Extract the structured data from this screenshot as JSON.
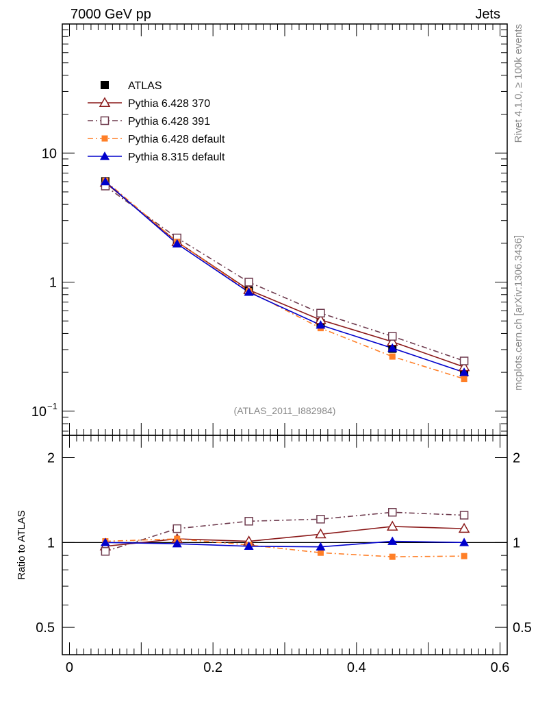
{
  "header": {
    "left_title": "7000 GeV pp",
    "right_title": "Jets"
  },
  "side_text": {
    "rivet": "Rivet 4.1.0, ≥ 100k events",
    "source": "mcplots.cern.ch [arXiv:1306.3436]"
  },
  "analysis_label": "(ATLAS_2011_I882984)",
  "chart_data": [
    {
      "type": "line",
      "panel": "main",
      "y_scale": "log",
      "xlim": [
        -0.01,
        0.61
      ],
      "ylim": [
        0.065,
        100
      ],
      "y_ticks": [
        {
          "value": 10,
          "label": "10",
          "exp": ""
        },
        {
          "value": 1,
          "label": "1",
          "exp": ""
        },
        {
          "value": 0.1,
          "label": "10",
          "exp": "−1"
        }
      ],
      "x": [
        0.05,
        0.15,
        0.25,
        0.35,
        0.45,
        0.55
      ],
      "legend_position": "top-left",
      "series": [
        {
          "name": "ATLAS",
          "color": "#000000",
          "marker": "square-filled",
          "line": "none",
          "values": [
            6.05,
            2.0,
            0.86,
            0.48,
            0.305,
            0.2
          ]
        },
        {
          "name": "Pythia 6.428 370",
          "color": "#8b1a1a",
          "marker": "triangle-open",
          "line": "solid",
          "values": [
            5.9,
            2.05,
            0.87,
            0.51,
            0.345,
            0.22
          ]
        },
        {
          "name": "Pythia 6.428 391",
          "color": "#6e3b4e",
          "marker": "square-open",
          "line": "dashdot",
          "values": [
            5.55,
            2.2,
            1.0,
            0.575,
            0.38,
            0.245
          ]
        },
        {
          "name": "Pythia 6.428 default",
          "color": "#ff7f27",
          "marker": "square-filled-small",
          "line": "dashdot",
          "values": [
            6.1,
            2.05,
            0.85,
            0.44,
            0.265,
            0.178
          ]
        },
        {
          "name": "Pythia 8.315 default",
          "color": "#0000cc",
          "marker": "triangle-filled",
          "line": "solid",
          "values": [
            6.0,
            1.98,
            0.835,
            0.465,
            0.308,
            0.2
          ]
        }
      ]
    },
    {
      "type": "line",
      "panel": "ratio",
      "y_scale": "log",
      "ylabel": "Ratio to ATLAS",
      "xlabel": "",
      "xlim": [
        -0.01,
        0.61
      ],
      "ylim": [
        0.4,
        2.4
      ],
      "y_ticks": [
        {
          "value": 2,
          "label": "2"
        },
        {
          "value": 1,
          "label": "1"
        },
        {
          "value": 0.5,
          "label": "0.5"
        }
      ],
      "x_ticks": [
        {
          "value": 0,
          "label": "0"
        },
        {
          "value": 0.2,
          "label": "0.2"
        },
        {
          "value": 0.4,
          "label": "0.4"
        },
        {
          "value": 0.6,
          "label": "0.6"
        }
      ],
      "reference": 1,
      "x": [
        0.05,
        0.15,
        0.25,
        0.35,
        0.45,
        0.55
      ],
      "series": [
        {
          "name": "Pythia 6.428 370",
          "values": [
            0.97,
            1.03,
            1.01,
            1.07,
            1.14,
            1.12
          ]
        },
        {
          "name": "Pythia 6.428 391",
          "values": [
            0.93,
            1.12,
            1.19,
            1.21,
            1.28,
            1.25
          ]
        },
        {
          "name": "Pythia 6.428 default",
          "values": [
            1.01,
            1.03,
            0.98,
            0.92,
            0.89,
            0.895
          ]
        },
        {
          "name": "Pythia 8.315 default",
          "values": [
            1.0,
            0.99,
            0.97,
            0.965,
            1.01,
            1.0
          ]
        }
      ]
    }
  ]
}
